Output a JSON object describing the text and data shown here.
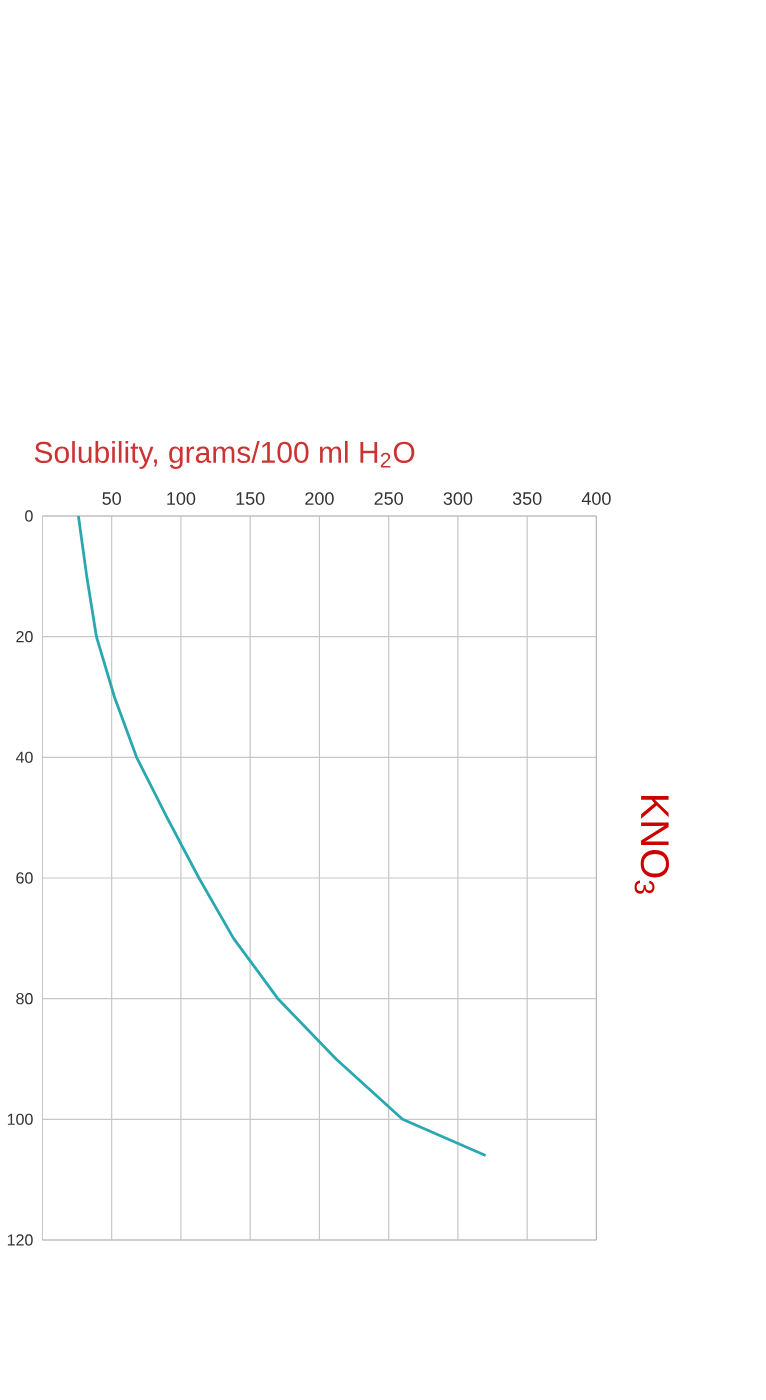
{
  "chart_data": {
    "type": "line",
    "title": "KNO$_{3}$",
    "xlabel": "Solubility, grams/100 ml H$_{2}$O",
    "x": [
      26,
      32,
      39,
      52,
      68,
      90,
      113,
      138,
      170,
      212,
      260,
      320
    ],
    "values": [
      0,
      10,
      20,
      30,
      40,
      50,
      60,
      70,
      80,
      90,
      100,
      106
    ],
    "color": "#2aa8b0",
    "xlim": [
      0,
      400
    ],
    "xticks": [
      50,
      100,
      150,
      200,
      250,
      300,
      350,
      400
    ],
    "ylim": [
      120,
      0
    ],
    "yticks": [
      0,
      20,
      40,
      60,
      80,
      100,
      120
    ],
    "grid": true,
    "marker": "none",
    "line_style": "solid"
  }
}
